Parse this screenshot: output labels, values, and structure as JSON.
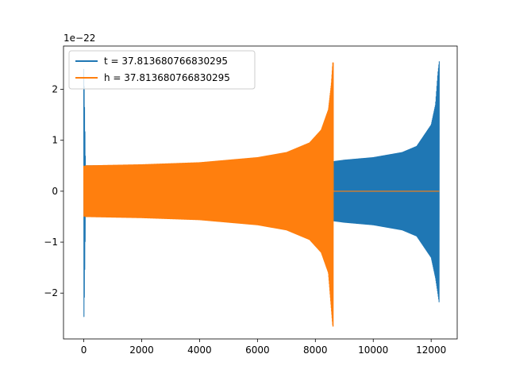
{
  "chart_data": {
    "type": "line",
    "title": "",
    "xlabel": "",
    "ylabel": "",
    "y_offset_label": "1e−22",
    "xlim": [
      -700,
      12900
    ],
    "ylim": [
      -2.9,
      2.85
    ],
    "x_ticks": [
      0,
      2000,
      4000,
      6000,
      8000,
      10000,
      12000
    ],
    "x_tick_labels": [
      "0",
      "2000",
      "4000",
      "6000",
      "8000",
      "10000",
      "12000"
    ],
    "y_ticks": [
      2,
      1,
      0,
      -1,
      -2
    ],
    "y_tick_labels": [
      "2",
      "1",
      "0",
      "−1",
      "−2"
    ],
    "legend_position": "top-left",
    "grid": false,
    "series": [
      {
        "name": "t = 37.813680766830295",
        "color": "#1f77b4",
        "x_range": [
          0,
          12280
        ],
        "envelope": {
          "x": [
            0,
            20,
            60,
            200,
            2000,
            4000,
            6000,
            8000,
            8600,
            9000,
            10000,
            11000,
            11500,
            12000,
            12150,
            12230,
            12280
          ],
          "upper": [
            2.4,
            1.9,
            0.5,
            0.5,
            0.5,
            0.51,
            0.53,
            0.56,
            0.58,
            0.61,
            0.66,
            0.76,
            0.88,
            1.3,
            1.7,
            2.3,
            2.55
          ],
          "lower": [
            -2.65,
            -2.1,
            -0.5,
            -0.5,
            -0.5,
            -0.51,
            -0.53,
            -0.56,
            -0.58,
            -0.61,
            -0.66,
            -0.76,
            -0.88,
            -1.3,
            -1.7,
            -2.0,
            -2.2
          ]
        }
      },
      {
        "name": "h = 37.813680766830295",
        "color": "#ff7f0e",
        "x_range": [
          0,
          12280
        ],
        "envelope": {
          "x": [
            0,
            20,
            60,
            200,
            2000,
            4000,
            6000,
            7000,
            7800,
            8200,
            8450,
            8550,
            8600,
            8620
          ],
          "upper": [
            0.5,
            0.48,
            0.5,
            0.5,
            0.52,
            0.56,
            0.66,
            0.76,
            0.95,
            1.2,
            1.6,
            2.1,
            2.52,
            2.52
          ],
          "lower": [
            -0.5,
            -0.48,
            -0.5,
            -0.5,
            -0.52,
            -0.56,
            -0.66,
            -0.76,
            -0.95,
            -1.2,
            -1.6,
            -2.3,
            -2.65,
            -2.65
          ]
        },
        "flat_after": 8620
      }
    ]
  }
}
